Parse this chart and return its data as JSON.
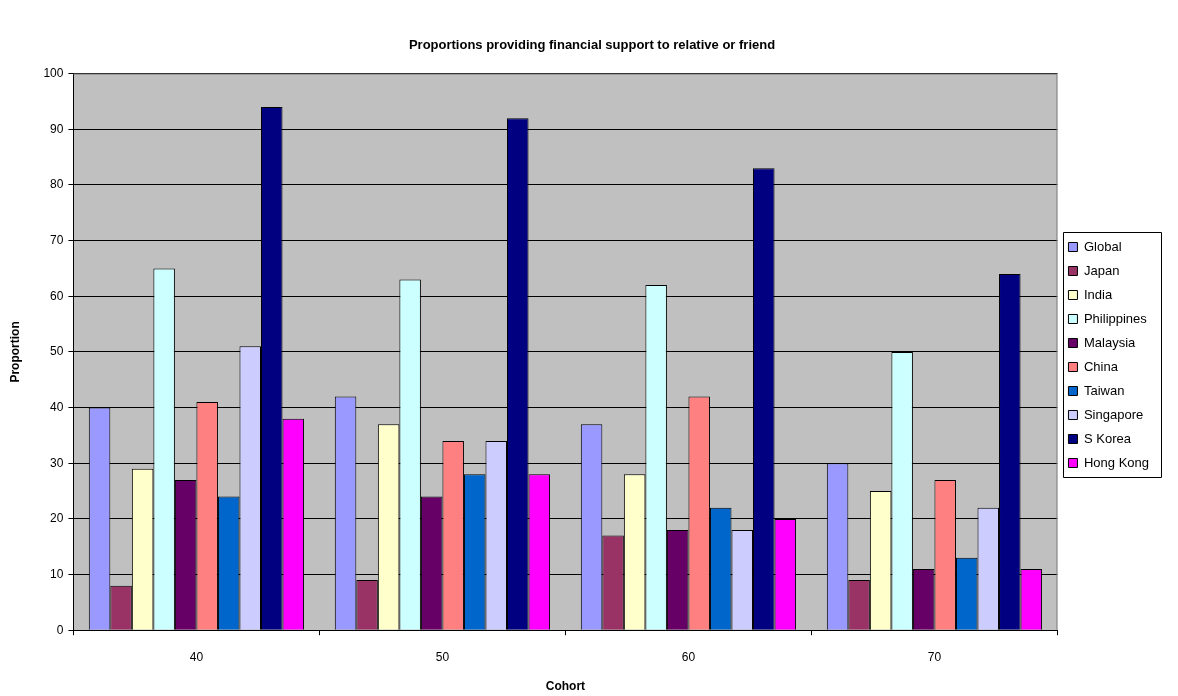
{
  "chart_data": {
    "type": "bar",
    "title": "Proportions providing financial support to relative or friend",
    "xlabel": "Cohort",
    "ylabel": "Proportion",
    "categories": [
      "40",
      "50",
      "60",
      "70"
    ],
    "ylim": [
      0,
      100
    ],
    "yticks": [
      0,
      10,
      20,
      30,
      40,
      50,
      60,
      70,
      80,
      90,
      100
    ],
    "grid": "y",
    "legend": "right",
    "series": [
      {
        "name": "Global",
        "color": "#9999ff",
        "values": [
          40,
          42,
          37,
          30
        ]
      },
      {
        "name": "Japan",
        "color": "#993366",
        "values": [
          8,
          9,
          17,
          9
        ]
      },
      {
        "name": "India",
        "color": "#ffffcc",
        "values": [
          29,
          37,
          28,
          25
        ]
      },
      {
        "name": "Philippines",
        "color": "#ccffff",
        "values": [
          65,
          63,
          62,
          50
        ]
      },
      {
        "name": "Malaysia",
        "color": "#660066",
        "values": [
          27,
          24,
          18,
          11
        ]
      },
      {
        "name": "China",
        "color": "#ff8080",
        "values": [
          41,
          34,
          42,
          27
        ]
      },
      {
        "name": "Taiwan",
        "color": "#0066cc",
        "values": [
          24,
          28,
          22,
          13
        ]
      },
      {
        "name": "Singapore",
        "color": "#ccccff",
        "values": [
          51,
          34,
          18,
          22
        ]
      },
      {
        "name": "S Korea",
        "color": "#000080",
        "values": [
          94,
          92,
          83,
          64
        ]
      },
      {
        "name": "Hong Kong",
        "color": "#ff00ff",
        "values": [
          38,
          28,
          20,
          11
        ]
      }
    ]
  }
}
